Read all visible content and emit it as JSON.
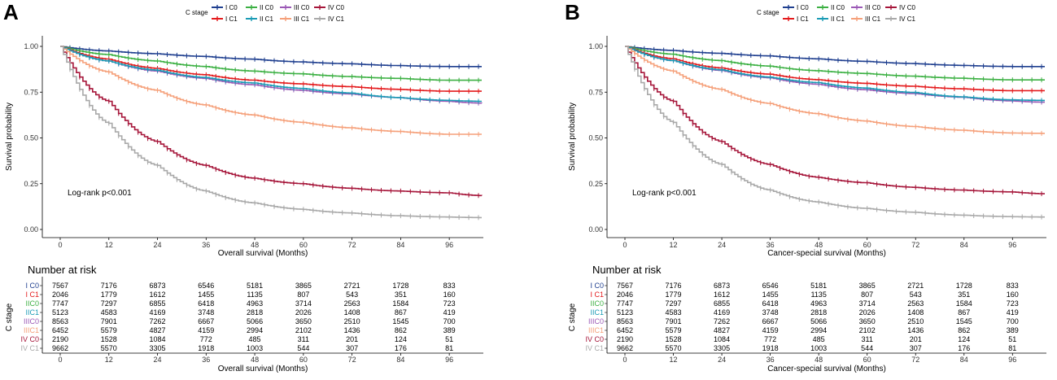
{
  "legend": {
    "title": "C stage",
    "items": [
      {
        "label": "I C0",
        "color": "#1f3f8f"
      },
      {
        "label": "II C0",
        "color": "#3cb043"
      },
      {
        "label": "III C0",
        "color": "#9b59b6"
      },
      {
        "label": "IV C0",
        "color": "#a6163a"
      },
      {
        "label": "I C1",
        "color": "#e41a1c"
      },
      {
        "label": "II C1",
        "color": "#1a9bb5"
      },
      {
        "label": "III C1",
        "color": "#f5a07a"
      },
      {
        "label": "IV C1",
        "color": "#a9a9a9"
      }
    ]
  },
  "chart_data": [
    {
      "panel_label": "A",
      "type": "line",
      "title": "",
      "xlabel": "Overall survival (Months)",
      "ylabel": "Survival probability",
      "xlim": [
        0,
        104
      ],
      "ylim": [
        0,
        1
      ],
      "xticks": [
        0,
        12,
        24,
        36,
        48,
        60,
        72,
        84,
        96
      ],
      "yticks": [
        "0.00",
        "0.25",
        "0.50",
        "0.75",
        "1.00"
      ],
      "annotation": "Log-rank p<0.001",
      "x": [
        0,
        12,
        24,
        36,
        48,
        60,
        72,
        84,
        96,
        104
      ],
      "series": [
        {
          "name": "I C0",
          "color": "#1f3f8f",
          "values": [
            1.0,
            0.975,
            0.96,
            0.945,
            0.93,
            0.915,
            0.905,
            0.895,
            0.89,
            0.89
          ]
        },
        {
          "name": "II C0",
          "color": "#3cb043",
          "values": [
            1.0,
            0.955,
            0.92,
            0.89,
            0.865,
            0.85,
            0.835,
            0.825,
            0.815,
            0.815
          ]
        },
        {
          "name": "III C0",
          "color": "#9b59b6",
          "values": [
            1.0,
            0.92,
            0.865,
            0.825,
            0.79,
            0.76,
            0.74,
            0.72,
            0.7,
            0.69
          ]
        },
        {
          "name": "IV C0",
          "color": "#a6163a",
          "values": [
            1.0,
            0.7,
            0.48,
            0.35,
            0.28,
            0.25,
            0.225,
            0.21,
            0.2,
            0.185
          ]
        },
        {
          "name": "I C1",
          "color": "#e41a1c",
          "values": [
            1.0,
            0.93,
            0.88,
            0.845,
            0.815,
            0.795,
            0.78,
            0.765,
            0.755,
            0.755
          ]
        },
        {
          "name": "II C1",
          "color": "#1a9bb5",
          "values": [
            1.0,
            0.92,
            0.87,
            0.83,
            0.8,
            0.77,
            0.745,
            0.72,
            0.705,
            0.7
          ]
        },
        {
          "name": "III C1",
          "color": "#f5a07a",
          "values": [
            1.0,
            0.86,
            0.76,
            0.68,
            0.625,
            0.585,
            0.555,
            0.535,
            0.52,
            0.52
          ]
        },
        {
          "name": "IV C1",
          "color": "#a9a9a9",
          "values": [
            1.0,
            0.58,
            0.35,
            0.21,
            0.145,
            0.11,
            0.09,
            0.075,
            0.068,
            0.065
          ]
        }
      ],
      "risk_table": {
        "title": "Number at risk",
        "ylabel": "C stage",
        "xlabel": "Overall survival (Months)",
        "times": [
          0,
          12,
          24,
          36,
          48,
          60,
          72,
          84,
          96
        ],
        "rows": [
          {
            "label": "I C0",
            "color": "#1f3f8f",
            "values": [
              "7567",
              "7176",
              "6873",
              "6546",
              "5181",
              "3865",
              "2721",
              "1728",
              "833"
            ]
          },
          {
            "label": "I C1",
            "color": "#e41a1c",
            "values": [
              "2046",
              "1779",
              "1612",
              "1455",
              "1135",
              "807",
              "543",
              "351",
              "160"
            ]
          },
          {
            "label": "IIC0",
            "color": "#3cb043",
            "values": [
              "7747",
              "7297",
              "6855",
              "6418",
              "4963",
              "3714",
              "2563",
              "1584",
              "723"
            ]
          },
          {
            "label": "IIC1",
            "color": "#1a9bb5",
            "values": [
              "5123",
              "4583",
              "4169",
              "3748",
              "2818",
              "2026",
              "1408",
              "867",
              "419"
            ]
          },
          {
            "label": "IIIC0",
            "color": "#9b59b6",
            "values": [
              "8563",
              "7901",
              "7262",
              "6667",
              "5066",
              "3650",
              "2510",
              "1545",
              "700"
            ]
          },
          {
            "label": "IIIC1",
            "color": "#f5a07a",
            "values": [
              "6452",
              "5579",
              "4827",
              "4159",
              "2994",
              "2102",
              "1436",
              "862",
              "389"
            ]
          },
          {
            "label": "IV C0",
            "color": "#a6163a",
            "values": [
              "2190",
              "1528",
              "1084",
              "772",
              "485",
              "311",
              "201",
              "124",
              "51"
            ]
          },
          {
            "label": "IV C1",
            "color": "#a9a9a9",
            "values": [
              "9662",
              "5570",
              "3305",
              "1918",
              "1003",
              "544",
              "307",
              "176",
              "81"
            ]
          }
        ]
      }
    },
    {
      "panel_label": "B",
      "type": "line",
      "title": "",
      "xlabel": "Cancer-special survival (Months)",
      "ylabel": "Survival probability",
      "xlim": [
        0,
        104
      ],
      "ylim": [
        0,
        1
      ],
      "xticks": [
        0,
        12,
        24,
        36,
        48,
        60,
        72,
        84,
        96
      ],
      "yticks": [
        "0.00",
        "0.25",
        "0.50",
        "0.75",
        "1.00"
      ],
      "annotation": "Log-rank p<0.001",
      "x": [
        0,
        12,
        24,
        36,
        48,
        60,
        72,
        84,
        96,
        104
      ],
      "series": [
        {
          "name": "I C0",
          "color": "#1f3f8f",
          "values": [
            1.0,
            0.978,
            0.962,
            0.948,
            0.932,
            0.918,
            0.906,
            0.896,
            0.89,
            0.89
          ]
        },
        {
          "name": "II C0",
          "color": "#3cb043",
          "values": [
            1.0,
            0.957,
            0.922,
            0.892,
            0.867,
            0.852,
            0.837,
            0.826,
            0.817,
            0.817
          ]
        },
        {
          "name": "III C0",
          "color": "#9b59b6",
          "values": [
            1.0,
            0.922,
            0.868,
            0.828,
            0.793,
            0.763,
            0.742,
            0.722,
            0.702,
            0.695
          ]
        },
        {
          "name": "IV C0",
          "color": "#a6163a",
          "values": [
            1.0,
            0.7,
            0.48,
            0.355,
            0.285,
            0.255,
            0.23,
            0.215,
            0.205,
            0.195
          ]
        },
        {
          "name": "I C1",
          "color": "#e41a1c",
          "values": [
            1.0,
            0.932,
            0.882,
            0.848,
            0.818,
            0.798,
            0.782,
            0.768,
            0.758,
            0.758
          ]
        },
        {
          "name": "II C1",
          "color": "#1a9bb5",
          "values": [
            1.0,
            0.922,
            0.872,
            0.832,
            0.802,
            0.772,
            0.748,
            0.724,
            0.708,
            0.705
          ]
        },
        {
          "name": "III C1",
          "color": "#f5a07a",
          "values": [
            1.0,
            0.865,
            0.765,
            0.688,
            0.632,
            0.592,
            0.562,
            0.542,
            0.527,
            0.525
          ]
        },
        {
          "name": "IV C1",
          "color": "#a9a9a9",
          "values": [
            1.0,
            0.585,
            0.355,
            0.215,
            0.15,
            0.115,
            0.094,
            0.078,
            0.07,
            0.068
          ]
        }
      ],
      "risk_table": {
        "title": "Number at risk",
        "ylabel": "C stage",
        "xlabel": "Cancer-special survival (Months)",
        "times": [
          0,
          12,
          24,
          36,
          48,
          60,
          72,
          84,
          96
        ],
        "rows": [
          {
            "label": "I C0",
            "color": "#1f3f8f",
            "values": [
              "7567",
              "7176",
              "6873",
              "6546",
              "5181",
              "3865",
              "2721",
              "1728",
              "833"
            ]
          },
          {
            "label": "I C1",
            "color": "#e41a1c",
            "values": [
              "2046",
              "1779",
              "1612",
              "1455",
              "1135",
              "807",
              "543",
              "351",
              "160"
            ]
          },
          {
            "label": "IIC0",
            "color": "#3cb043",
            "values": [
              "7747",
              "7297",
              "6855",
              "6418",
              "4963",
              "3714",
              "2563",
              "1584",
              "723"
            ]
          },
          {
            "label": "IIC1",
            "color": "#1a9bb5",
            "values": [
              "5123",
              "4583",
              "4169",
              "3748",
              "2818",
              "2026",
              "1408",
              "867",
              "419"
            ]
          },
          {
            "label": "IIIC0",
            "color": "#9b59b6",
            "values": [
              "8563",
              "7901",
              "7262",
              "6667",
              "5066",
              "3650",
              "2510",
              "1545",
              "700"
            ]
          },
          {
            "label": "IIIC1",
            "color": "#f5a07a",
            "values": [
              "6452",
              "5579",
              "4827",
              "4159",
              "2994",
              "2102",
              "1436",
              "862",
              "389"
            ]
          },
          {
            "label": "IV C0",
            "color": "#a6163a",
            "values": [
              "2190",
              "1528",
              "1084",
              "772",
              "485",
              "311",
              "201",
              "124",
              "51"
            ]
          },
          {
            "label": "IV C1",
            "color": "#a9a9a9",
            "values": [
              "9662",
              "5570",
              "3305",
              "1918",
              "1003",
              "544",
              "307",
              "176",
              "81"
            ]
          }
        ]
      }
    }
  ]
}
